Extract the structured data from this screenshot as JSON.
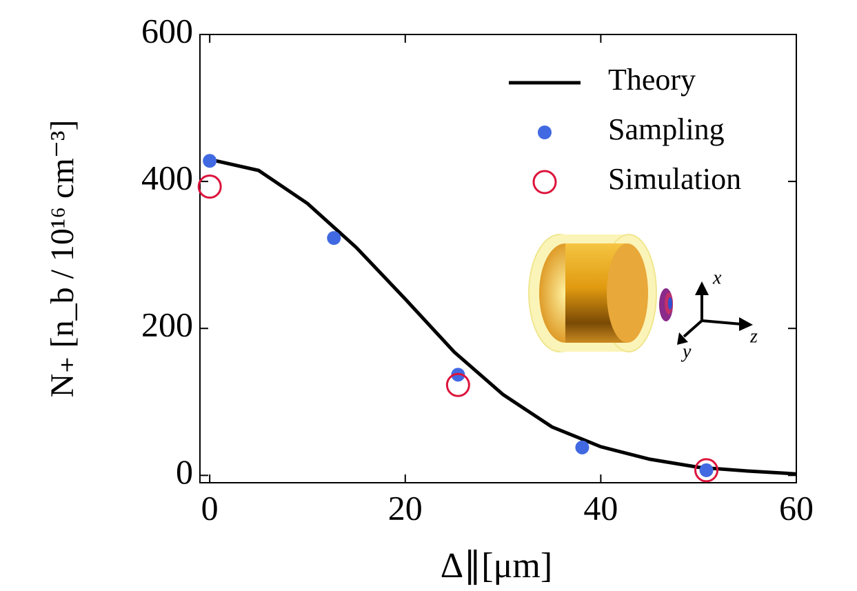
{
  "chart_data": {
    "type": "line",
    "xlabel": "Δ∥[μm]",
    "ylabel": "N₊ [n_b / 10¹⁶ cm⁻³]",
    "xlim": [
      -1,
      60
    ],
    "ylim": [
      -10,
      600
    ],
    "xticks": [
      0,
      20,
      40,
      60
    ],
    "yticks": [
      0,
      200,
      400,
      600
    ],
    "legend": "upper right",
    "series": [
      {
        "name": "Theory",
        "style": "line",
        "color": "#000000",
        "x": [
          0,
          5,
          10,
          15,
          20,
          25,
          30,
          35,
          40,
          45,
          50,
          55,
          60
        ],
        "values": [
          430,
          415,
          370,
          310,
          240,
          168,
          110,
          66,
          39,
          22,
          11,
          6,
          2
        ]
      },
      {
        "name": "Sampling",
        "style": "dot",
        "color": "#4169e1",
        "x": [
          0,
          12.7,
          25.4,
          38.1,
          50.8
        ],
        "values": [
          428,
          323,
          137,
          38,
          7
        ]
      },
      {
        "name": "Simulation",
        "style": "ring",
        "color": "#dc143c",
        "x": [
          0,
          25.4,
          50.8
        ],
        "values": [
          393,
          123,
          7
        ]
      }
    ],
    "inset_axes": [
      "x",
      "y",
      "z"
    ]
  }
}
